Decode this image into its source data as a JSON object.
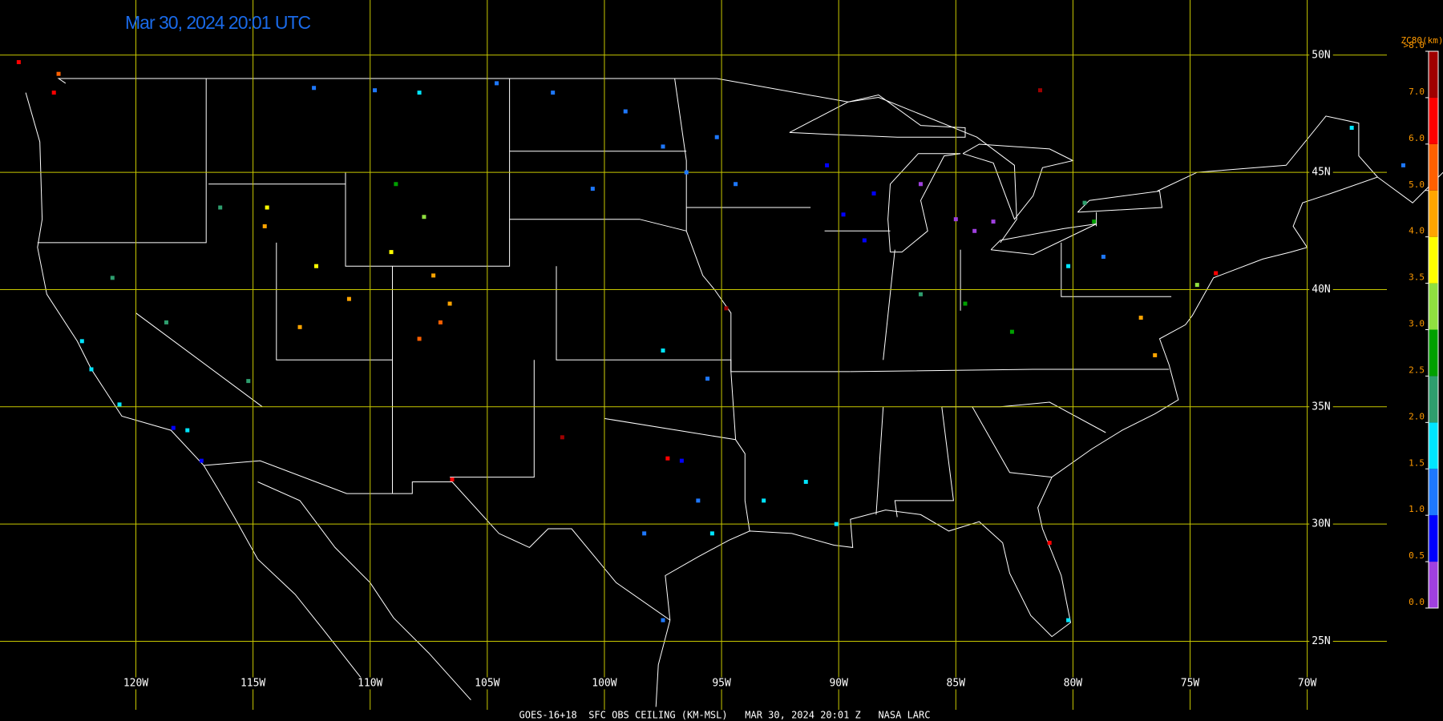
{
  "title": "Mar 30, 2024 20:01 UTC",
  "footer": "GOES-16+18  SFC OBS CEILING (KM-MSL)   MAR 30, 2024 20:01 Z   NASA LARC",
  "map": {
    "xlim": [
      -125.8,
      -66.6
    ],
    "ylim": [
      21.6,
      52.35
    ],
    "latitudes": [
      {
        "value": 50,
        "label": "50N"
      },
      {
        "value": 45,
        "label": "45N"
      },
      {
        "value": 40,
        "label": "40N"
      },
      {
        "value": 35,
        "label": "35N"
      },
      {
        "value": 30,
        "label": "30N"
      },
      {
        "value": 25,
        "label": "25N"
      }
    ],
    "longitudes": [
      {
        "value": -120,
        "label": "120W"
      },
      {
        "value": -115,
        "label": "115W"
      },
      {
        "value": -110,
        "label": "110W"
      },
      {
        "value": -105,
        "label": "105W"
      },
      {
        "value": -100,
        "label": "100W"
      },
      {
        "value": -95,
        "label": "95W"
      },
      {
        "value": -90,
        "label": "90W"
      },
      {
        "value": -85,
        "label": "85W"
      },
      {
        "value": -80,
        "label": "80W"
      },
      {
        "value": -75,
        "label": "75W"
      },
      {
        "value": -70,
        "label": "70W"
      }
    ],
    "grid_color": "#c8c800"
  },
  "colorbar": {
    "title": "ZC80(km)",
    "ticks": [
      {
        "value": 0,
        "label": "0.0"
      },
      {
        "value": 0.5,
        "label": "0.5"
      },
      {
        "value": 1,
        "label": "1.0"
      },
      {
        "value": 1.5,
        "label": "1.5"
      },
      {
        "value": 2,
        "label": "2.0"
      },
      {
        "value": 2.5,
        "label": "2.5"
      },
      {
        "value": 3,
        "label": "3.0"
      },
      {
        "value": 3.5,
        "label": "3.5"
      },
      {
        "value": 4,
        "label": "4.0"
      },
      {
        "value": 5,
        "label": "5.0"
      },
      {
        "value": 6,
        "label": "6.0"
      },
      {
        "value": 7,
        "label": "7.0"
      },
      {
        "value": 8,
        "label": ">8.0"
      }
    ],
    "colors": [
      "#a040e0",
      "#0000ff",
      "#1e78ff",
      "#00e5ff",
      "#2e9e6e",
      "#00a000",
      "#90e040",
      "#ffff00",
      "#ffa500",
      "#ff6000",
      "#ff0000",
      "#a00000"
    ]
  },
  "stations": [
    {
      "lon": -123.5,
      "lat": 48.4,
      "ceiling": 6.5
    },
    {
      "lon": -125.0,
      "lat": 49.7,
      "ceiling": 6.2
    },
    {
      "lon": -123.3,
      "lat": 49.2,
      "ceiling": 5.5
    },
    {
      "lon": -112.4,
      "lat": 48.6,
      "ceiling": 1.2
    },
    {
      "lon": -109.8,
      "lat": 48.5,
      "ceiling": 1.3
    },
    {
      "lon": -107.9,
      "lat": 48.4,
      "ceiling": 1.7
    },
    {
      "lon": -104.6,
      "lat": 48.8,
      "ceiling": 1.2
    },
    {
      "lon": -102.2,
      "lat": 48.4,
      "ceiling": 1.1
    },
    {
      "lon": -99.1,
      "lat": 47.6,
      "ceiling": 1.2
    },
    {
      "lon": -97.5,
      "lat": 46.1,
      "ceiling": 1.2
    },
    {
      "lon": -95.2,
      "lat": 46.5,
      "ceiling": 1.1
    },
    {
      "lon": -94.4,
      "lat": 44.5,
      "ceiling": 1.3
    },
    {
      "lon": -96.5,
      "lat": 45.0,
      "ceiling": 1.2
    },
    {
      "lon": -100.5,
      "lat": 44.3,
      "ceiling": 1.2
    },
    {
      "lon": -90.5,
      "lat": 45.3,
      "ceiling": 0.8
    },
    {
      "lon": -88.5,
      "lat": 44.1,
      "ceiling": 0.7
    },
    {
      "lon": -88.9,
      "lat": 42.1,
      "ceiling": 0.7
    },
    {
      "lon": -89.8,
      "lat": 43.2,
      "ceiling": 0.8
    },
    {
      "lon": -84.2,
      "lat": 42.5,
      "ceiling": 0.3
    },
    {
      "lon": -83.4,
      "lat": 42.9,
      "ceiling": 0.2
    },
    {
      "lon": -86.5,
      "lat": 44.5,
      "ceiling": 0.4
    },
    {
      "lon": -85.0,
      "lat": 43.0,
      "ceiling": 0.3
    },
    {
      "lon": -116.4,
      "lat": 43.5,
      "ceiling": 2.4
    },
    {
      "lon": -114.4,
      "lat": 43.5,
      "ceiling": 3.7
    },
    {
      "lon": -114.5,
      "lat": 42.7,
      "ceiling": 4.5
    },
    {
      "lon": -108.9,
      "lat": 44.5,
      "ceiling": 2.7
    },
    {
      "lon": -107.7,
      "lat": 43.1,
      "ceiling": 3.2
    },
    {
      "lon": -109.1,
      "lat": 41.6,
      "ceiling": 3.8
    },
    {
      "lon": -107.3,
      "lat": 40.6,
      "ceiling": 4.5
    },
    {
      "lon": -106.6,
      "lat": 39.4,
      "ceiling": 4.7
    },
    {
      "lon": -107.0,
      "lat": 38.6,
      "ceiling": 5.2
    },
    {
      "lon": -107.9,
      "lat": 37.9,
      "ceiling": 5.5
    },
    {
      "lon": -112.3,
      "lat": 41.0,
      "ceiling": 3.8
    },
    {
      "lon": -113.0,
      "lat": 38.4,
      "ceiling": 4.2
    },
    {
      "lon": -110.9,
      "lat": 39.6,
      "ceiling": 4.3
    },
    {
      "lon": -122.3,
      "lat": 37.8,
      "ceiling": 1.6
    },
    {
      "lon": -121.9,
      "lat": 36.6,
      "ceiling": 1.7
    },
    {
      "lon": -120.7,
      "lat": 35.1,
      "ceiling": 1.8
    },
    {
      "lon": -118.4,
      "lat": 34.1,
      "ceiling": 0.8
    },
    {
      "lon": -117.8,
      "lat": 34.0,
      "ceiling": 1.6
    },
    {
      "lon": -117.2,
      "lat": 32.7,
      "ceiling": 0.9
    },
    {
      "lon": -118.7,
      "lat": 38.6,
      "ceiling": 2.2
    },
    {
      "lon": -115.2,
      "lat": 36.1,
      "ceiling": 2.4
    },
    {
      "lon": -121.0,
      "lat": 40.5,
      "ceiling": 2.3
    },
    {
      "lon": -97.5,
      "lat": 37.4,
      "ceiling": 1.7
    },
    {
      "lon": -95.6,
      "lat": 36.2,
      "ceiling": 1.3
    },
    {
      "lon": -96.7,
      "lat": 32.7,
      "ceiling": 0.8
    },
    {
      "lon": -97.3,
      "lat": 32.8,
      "ceiling": 6.8
    },
    {
      "lon": -98.3,
      "lat": 29.6,
      "ceiling": 1.2
    },
    {
      "lon": -95.4,
      "lat": 29.6,
      "ceiling": 1.8
    },
    {
      "lon": -97.5,
      "lat": 25.9,
      "ceiling": 1.1
    },
    {
      "lon": -96.0,
      "lat": 31.0,
      "ceiling": 1.2
    },
    {
      "lon": -93.2,
      "lat": 31.0,
      "ceiling": 1.9
    },
    {
      "lon": -91.4,
      "lat": 31.8,
      "ceiling": 1.8
    },
    {
      "lon": -90.1,
      "lat": 30.0,
      "ceiling": 1.7
    },
    {
      "lon": -84.6,
      "lat": 39.4,
      "ceiling": 2.8
    },
    {
      "lon": -82.6,
      "lat": 38.2,
      "ceiling": 2.6
    },
    {
      "lon": -86.5,
      "lat": 39.8,
      "ceiling": 2.2
    },
    {
      "lon": -77.1,
      "lat": 38.8,
      "ceiling": 4.3
    },
    {
      "lon": -76.5,
      "lat": 37.2,
      "ceiling": 4.5
    },
    {
      "lon": -74.7,
      "lat": 40.2,
      "ceiling": 3.4
    },
    {
      "lon": -73.9,
      "lat": 40.7,
      "ceiling": 6.7
    },
    {
      "lon": -78.7,
      "lat": 41.4,
      "ceiling": 1.3
    },
    {
      "lon": -80.2,
      "lat": 41.0,
      "ceiling": 1.8
    },
    {
      "lon": -79.5,
      "lat": 43.7,
      "ceiling": 2.3
    },
    {
      "lon": -79.1,
      "lat": 42.9,
      "ceiling": 2.9
    },
    {
      "lon": -81.0,
      "lat": 29.2,
      "ceiling": 6.7
    },
    {
      "lon": -80.2,
      "lat": 25.9,
      "ceiling": 1.8
    },
    {
      "lon": -94.8,
      "lat": 39.2,
      "ceiling": 7.2
    },
    {
      "lon": -81.4,
      "lat": 48.5,
      "ceiling": 7.5
    },
    {
      "lon": -101.8,
      "lat": 33.7,
      "ceiling": 7.3
    },
    {
      "lon": -106.5,
      "lat": 31.9,
      "ceiling": 6.5
    },
    {
      "lon": -68.1,
      "lat": 46.9,
      "ceiling": 1.8
    },
    {
      "lon": -65.9,
      "lat": 45.3,
      "ceiling": 1.3
    }
  ]
}
